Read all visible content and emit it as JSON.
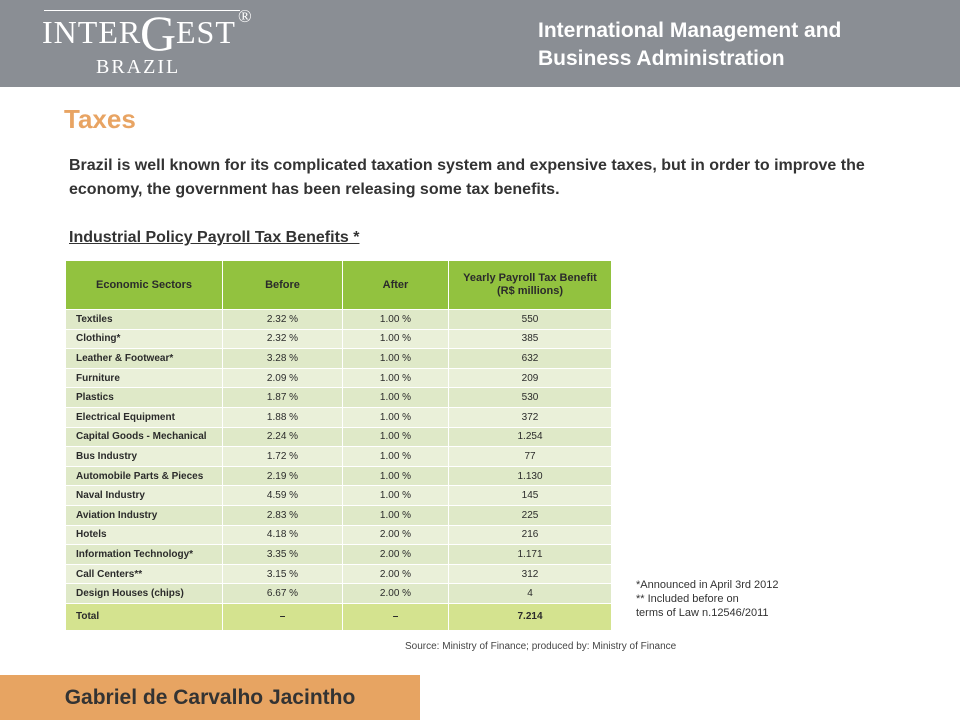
{
  "logo": {
    "inter": "INTER",
    "g": "G",
    "est": "EST",
    "reg": "®",
    "brazil": "BRAZIL"
  },
  "header": {
    "title_line1": "International Management and",
    "title_line2": "Business Administration"
  },
  "page": {
    "title": "Taxes",
    "intro": "Brazil is well known for its complicated taxation system and expensive taxes, but in order to improve the economy, the government has been releasing some tax benefits.",
    "subheading": "Industrial Policy Payroll Tax Benefits *"
  },
  "table": {
    "headers": {
      "sector": "Economic Sectors",
      "before": "Before",
      "after": "After",
      "benefit_line1": "Yearly Payroll Tax Benefit",
      "benefit_line2": "(R$ millions)"
    },
    "rows": [
      {
        "sector": "Textiles",
        "before": "2.32 %",
        "after": "1.00 %",
        "benefit": "550"
      },
      {
        "sector": "Clothing*",
        "before": "2.32 %",
        "after": "1.00 %",
        "benefit": "385"
      },
      {
        "sector": "Leather & Footwear*",
        "before": "3.28 %",
        "after": "1.00 %",
        "benefit": "632"
      },
      {
        "sector": "Furniture",
        "before": "2.09 %",
        "after": "1.00 %",
        "benefit": "209"
      },
      {
        "sector": "Plastics",
        "before": "1.87 %",
        "after": "1.00 %",
        "benefit": "530"
      },
      {
        "sector": "Electrical Equipment",
        "before": "1.88 %",
        "after": "1.00 %",
        "benefit": "372"
      },
      {
        "sector": "Capital Goods - Mechanical",
        "before": "2.24 %",
        "after": "1.00 %",
        "benefit": "1.254"
      },
      {
        "sector": "Bus Industry",
        "before": "1.72 %",
        "after": "1.00 %",
        "benefit": "77"
      },
      {
        "sector": "Automobile Parts & Pieces",
        "before": "2.19 %",
        "after": "1.00 %",
        "benefit": "1.130"
      },
      {
        "sector": "Naval Industry",
        "before": "4.59 %",
        "after": "1.00 %",
        "benefit": "145"
      },
      {
        "sector": "Aviation Industry",
        "before": "2.83 %",
        "after": "1.00 %",
        "benefit": "225"
      },
      {
        "sector": "Hotels",
        "before": "4.18 %",
        "after": "2.00 %",
        "benefit": "216"
      },
      {
        "sector": "Information Technology*",
        "before": "3.35 %",
        "after": "2.00 %",
        "benefit": "1.171"
      },
      {
        "sector": "Call Centers**",
        "before": "3.15 %",
        "after": "2.00 %",
        "benefit": "312"
      },
      {
        "sector": "Design Houses (chips)",
        "before": "6.67 %",
        "after": "2.00 %",
        "benefit": "4"
      }
    ],
    "total": {
      "sector": "Total",
      "before": "–",
      "after": "–",
      "benefit": "7.214"
    }
  },
  "notes": {
    "line1": "*Announced in April 3rd 2012",
    "line2": "** Included before on",
    "line3": "terms of Law n.12546/2011"
  },
  "source": "Source: Ministry of Finance; produced by: Ministry of Finance",
  "footer": {
    "author": "Gabriel de Carvalho Jacintho"
  },
  "colors": {
    "header_bg": "#8a8e94",
    "accent_orange": "#e8a463",
    "table_header_green": "#92c23f",
    "row_light": "#eaf0d9",
    "total_row": "#d4e38f"
  }
}
